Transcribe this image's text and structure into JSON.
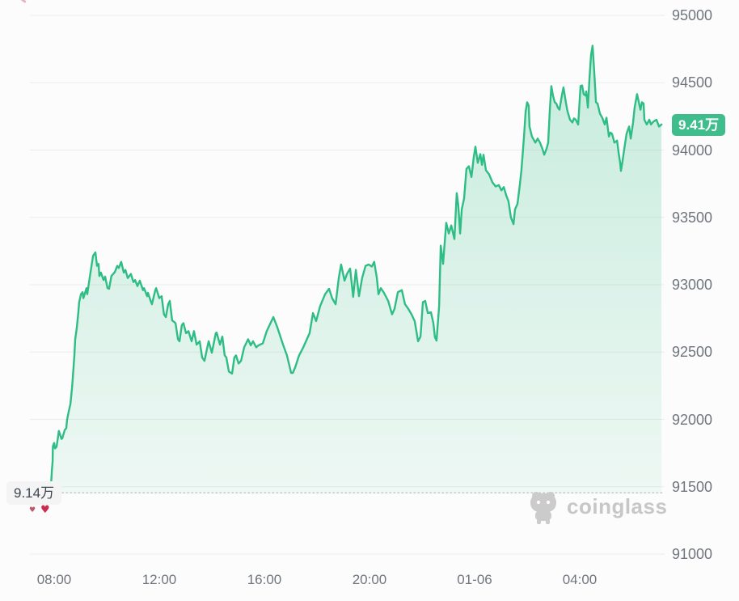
{
  "chart": {
    "current_price_label": "9.41万",
    "low_price_label": "9.14万",
    "watermark_text": "coinglass",
    "accent_color": "#2ebd85",
    "badge_bg": "#40bd8c",
    "grid_color": "#ececec",
    "dotted_line_color": "#c3c8cd"
  },
  "chart_data": {
    "type": "area",
    "title": "",
    "xlabel": "",
    "ylabel": "",
    "ylim": [
      91000,
      95000
    ],
    "grid": true,
    "legend": "none",
    "y_ticks": [
      95000,
      94500,
      94000,
      93500,
      93000,
      92500,
      92000,
      91500,
      91000
    ],
    "y_tick_labels": [
      "95000",
      "94500",
      "94000",
      "93500",
      "93000",
      "92500",
      "92000",
      "91500",
      "91000"
    ],
    "x_ticks": [
      {
        "t": 8,
        "label": "08:00"
      },
      {
        "t": 12,
        "label": "12:00"
      },
      {
        "t": 16,
        "label": "16:00"
      },
      {
        "t": 20,
        "label": "20:00"
      },
      {
        "t": 24,
        "label": "01-06"
      },
      {
        "t": 28,
        "label": "04:00"
      }
    ],
    "current_price": 94190,
    "low_price": 91455,
    "min_line_price": 91455,
    "series": [
      {
        "name": "price",
        "color": "#2ebd85",
        "points": [
          [
            7.86,
            91455
          ],
          [
            7.88,
            91510
          ],
          [
            7.91,
            91615
          ],
          [
            7.94,
            91690
          ],
          [
            7.95,
            91800
          ],
          [
            8.0,
            91825
          ],
          [
            8.03,
            91785
          ],
          [
            8.09,
            91795
          ],
          [
            8.15,
            91875
          ],
          [
            8.18,
            91915
          ],
          [
            8.28,
            91855
          ],
          [
            8.31,
            91860
          ],
          [
            8.4,
            91920
          ],
          [
            8.46,
            91935
          ],
          [
            8.49,
            91995
          ],
          [
            8.55,
            92055
          ],
          [
            8.62,
            92115
          ],
          [
            8.68,
            92235
          ],
          [
            8.71,
            92315
          ],
          [
            8.77,
            92475
          ],
          [
            8.8,
            92595
          ],
          [
            8.86,
            92675
          ],
          [
            8.92,
            92795
          ],
          [
            8.95,
            92870
          ],
          [
            9.02,
            92930
          ],
          [
            9.08,
            92945
          ],
          [
            9.11,
            92900
          ],
          [
            9.23,
            92975
          ],
          [
            9.26,
            92930
          ],
          [
            9.38,
            93090
          ],
          [
            9.48,
            93215
          ],
          [
            9.57,
            93240
          ],
          [
            9.63,
            93140
          ],
          [
            9.69,
            93155
          ],
          [
            9.72,
            93065
          ],
          [
            9.78,
            93090
          ],
          [
            9.88,
            93035
          ],
          [
            9.94,
            93060
          ],
          [
            10.03,
            92975
          ],
          [
            10.09,
            92970
          ],
          [
            10.18,
            93065
          ],
          [
            10.31,
            93095
          ],
          [
            10.4,
            93140
          ],
          [
            10.46,
            93125
          ],
          [
            10.55,
            93170
          ],
          [
            10.65,
            93090
          ],
          [
            10.71,
            93110
          ],
          [
            10.8,
            93050
          ],
          [
            10.92,
            93080
          ],
          [
            11.02,
            93020
          ],
          [
            11.08,
            93035
          ],
          [
            11.17,
            92990
          ],
          [
            11.26,
            93030
          ],
          [
            11.38,
            92960
          ],
          [
            11.42,
            92975
          ],
          [
            11.54,
            92915
          ],
          [
            11.57,
            92940
          ],
          [
            11.69,
            92870
          ],
          [
            11.72,
            92855
          ],
          [
            11.85,
            92960
          ],
          [
            11.88,
            92975
          ],
          [
            12.0,
            92900
          ],
          [
            12.09,
            92915
          ],
          [
            12.18,
            92780
          ],
          [
            12.25,
            92760
          ],
          [
            12.34,
            92855
          ],
          [
            12.4,
            92880
          ],
          [
            12.49,
            92735
          ],
          [
            12.62,
            92715
          ],
          [
            12.71,
            92595
          ],
          [
            12.77,
            92580
          ],
          [
            12.86,
            92700
          ],
          [
            12.92,
            92715
          ],
          [
            13.02,
            92640
          ],
          [
            13.11,
            92655
          ],
          [
            13.23,
            92580
          ],
          [
            13.32,
            92655
          ],
          [
            13.42,
            92555
          ],
          [
            13.54,
            92580
          ],
          [
            13.63,
            92460
          ],
          [
            13.72,
            92435
          ],
          [
            13.85,
            92555
          ],
          [
            13.88,
            92580
          ],
          [
            14.0,
            92495
          ],
          [
            14.15,
            92640
          ],
          [
            14.18,
            92645
          ],
          [
            14.31,
            92555
          ],
          [
            14.4,
            92615
          ],
          [
            14.49,
            92475
          ],
          [
            14.55,
            92460
          ],
          [
            14.65,
            92355
          ],
          [
            14.77,
            92340
          ],
          [
            14.86,
            92460
          ],
          [
            14.92,
            92475
          ],
          [
            15.02,
            92415
          ],
          [
            15.11,
            92435
          ],
          [
            15.23,
            92535
          ],
          [
            15.38,
            92595
          ],
          [
            15.48,
            92550
          ],
          [
            15.57,
            92580
          ],
          [
            15.69,
            92535
          ],
          [
            15.78,
            92550
          ],
          [
            15.94,
            92565
          ],
          [
            16.09,
            92655
          ],
          [
            16.34,
            92760
          ],
          [
            16.49,
            92685
          ],
          [
            16.71,
            92555
          ],
          [
            16.86,
            92475
          ],
          [
            17.02,
            92345
          ],
          [
            17.08,
            92345
          ],
          [
            17.17,
            92385
          ],
          [
            17.32,
            92475
          ],
          [
            17.48,
            92535
          ],
          [
            17.72,
            92640
          ],
          [
            17.85,
            92790
          ],
          [
            17.97,
            92730
          ],
          [
            18.12,
            92840
          ],
          [
            18.31,
            92930
          ],
          [
            18.46,
            92970
          ],
          [
            18.58,
            92900
          ],
          [
            18.71,
            92855
          ],
          [
            18.83,
            93050
          ],
          [
            18.92,
            93150
          ],
          [
            19.05,
            93030
          ],
          [
            19.14,
            93080
          ],
          [
            19.26,
            93120
          ],
          [
            19.38,
            92910
          ],
          [
            19.48,
            93110
          ],
          [
            19.6,
            92915
          ],
          [
            19.72,
            93050
          ],
          [
            19.85,
            93140
          ],
          [
            19.97,
            93150
          ],
          [
            20.09,
            93135
          ],
          [
            20.18,
            93170
          ],
          [
            20.28,
            93050
          ],
          [
            20.34,
            92930
          ],
          [
            20.43,
            92975
          ],
          [
            20.55,
            92940
          ],
          [
            20.71,
            92880
          ],
          [
            20.86,
            92780
          ],
          [
            20.95,
            92820
          ],
          [
            21.08,
            92945
          ],
          [
            21.23,
            92960
          ],
          [
            21.35,
            92855
          ],
          [
            21.48,
            92820
          ],
          [
            21.6,
            92780
          ],
          [
            21.72,
            92730
          ],
          [
            21.85,
            92580
          ],
          [
            21.94,
            92615
          ],
          [
            22.03,
            92870
          ],
          [
            22.12,
            92880
          ],
          [
            22.22,
            92790
          ],
          [
            22.34,
            92795
          ],
          [
            22.43,
            92715
          ],
          [
            22.49,
            92610
          ],
          [
            22.55,
            92585
          ],
          [
            22.65,
            92840
          ],
          [
            22.71,
            93290
          ],
          [
            22.8,
            93155
          ],
          [
            22.92,
            93460
          ],
          [
            23.02,
            93380
          ],
          [
            23.11,
            93440
          ],
          [
            23.23,
            93340
          ],
          [
            23.32,
            93680
          ],
          [
            23.38,
            93590
          ],
          [
            23.45,
            93380
          ],
          [
            23.51,
            93560
          ],
          [
            23.6,
            93640
          ],
          [
            23.69,
            93860
          ],
          [
            23.78,
            93880
          ],
          [
            23.88,
            93800
          ],
          [
            23.97,
            93950
          ],
          [
            24.03,
            94025
          ],
          [
            24.12,
            93905
          ],
          [
            24.22,
            93970
          ],
          [
            24.28,
            93890
          ],
          [
            24.34,
            93965
          ],
          [
            24.43,
            93850
          ],
          [
            24.55,
            93820
          ],
          [
            24.68,
            93760
          ],
          [
            24.8,
            93730
          ],
          [
            24.92,
            93740
          ],
          [
            25.02,
            93700
          ],
          [
            25.11,
            93725
          ],
          [
            25.2,
            93665
          ],
          [
            25.29,
            93620
          ],
          [
            25.38,
            93500
          ],
          [
            25.48,
            93450
          ],
          [
            25.54,
            93560
          ],
          [
            25.63,
            93600
          ],
          [
            25.72,
            93740
          ],
          [
            25.78,
            93850
          ],
          [
            25.88,
            94100
          ],
          [
            25.94,
            94285
          ],
          [
            26.0,
            94355
          ],
          [
            26.06,
            94330
          ],
          [
            26.09,
            94175
          ],
          [
            26.18,
            94100
          ],
          [
            26.31,
            94055
          ],
          [
            26.4,
            94085
          ],
          [
            26.49,
            94055
          ],
          [
            26.58,
            94010
          ],
          [
            26.65,
            93965
          ],
          [
            26.74,
            94010
          ],
          [
            26.8,
            94055
          ],
          [
            26.86,
            94285
          ],
          [
            26.92,
            94475
          ],
          [
            26.98,
            94405
          ],
          [
            27.05,
            94355
          ],
          [
            27.11,
            94345
          ],
          [
            27.17,
            94315
          ],
          [
            27.23,
            94300
          ],
          [
            27.32,
            94405
          ],
          [
            27.38,
            94465
          ],
          [
            27.48,
            94345
          ],
          [
            27.54,
            94285
          ],
          [
            27.63,
            94225
          ],
          [
            27.72,
            94205
          ],
          [
            27.78,
            94235
          ],
          [
            27.85,
            94225
          ],
          [
            27.94,
            94190
          ],
          [
            28.03,
            94475
          ],
          [
            28.09,
            94480
          ],
          [
            28.15,
            94415
          ],
          [
            28.22,
            94405
          ],
          [
            28.25,
            94435
          ],
          [
            28.31,
            94315
          ],
          [
            28.37,
            94525
          ],
          [
            28.43,
            94705
          ],
          [
            28.49,
            94775
          ],
          [
            28.55,
            94585
          ],
          [
            28.62,
            94355
          ],
          [
            28.68,
            94345
          ],
          [
            28.77,
            94270
          ],
          [
            28.86,
            94240
          ],
          [
            28.95,
            94190
          ],
          [
            29.02,
            94240
          ],
          [
            29.11,
            94100
          ],
          [
            29.17,
            94130
          ],
          [
            29.23,
            94120
          ],
          [
            29.32,
            94055
          ],
          [
            29.42,
            94070
          ],
          [
            29.48,
            93980
          ],
          [
            29.54,
            93905
          ],
          [
            29.57,
            93845
          ],
          [
            29.63,
            93920
          ],
          [
            29.69,
            94000
          ],
          [
            29.78,
            94120
          ],
          [
            29.88,
            94175
          ],
          [
            29.94,
            94085
          ],
          [
            30.03,
            94205
          ],
          [
            30.09,
            94315
          ],
          [
            30.18,
            94415
          ],
          [
            30.25,
            94355
          ],
          [
            30.31,
            94300
          ],
          [
            30.37,
            94355
          ],
          [
            30.43,
            94345
          ],
          [
            30.46,
            94225
          ],
          [
            30.55,
            94190
          ],
          [
            30.65,
            94225
          ],
          [
            30.71,
            94190
          ],
          [
            30.8,
            94210
          ],
          [
            30.92,
            94225
          ],
          [
            31.02,
            94175
          ],
          [
            31.11,
            94190
          ]
        ]
      }
    ]
  },
  "decorations": {
    "heart_small": "♥",
    "heart_big": "♥"
  }
}
